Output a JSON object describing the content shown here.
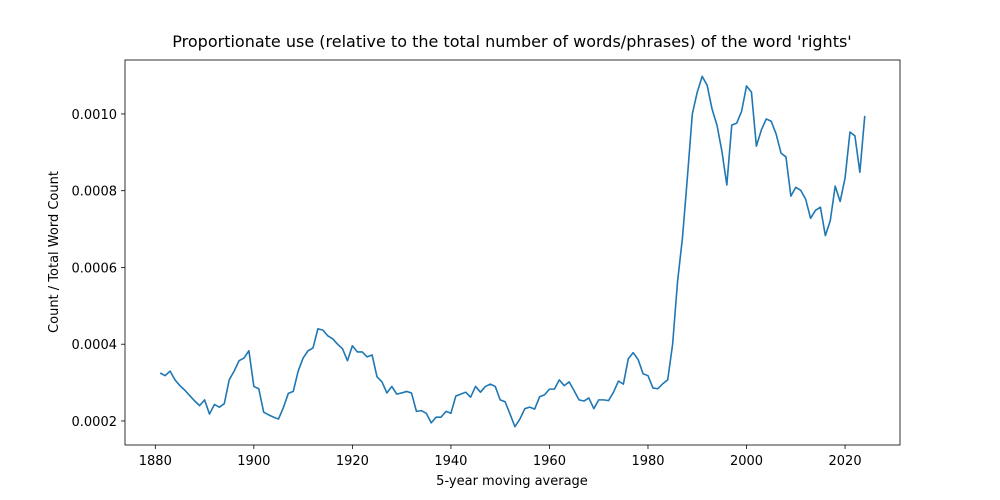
{
  "chart_data": {
    "type": "line",
    "title": "Proportionate use (relative to the total number of words/phrases) of the word 'rights'",
    "x_label": "5-year moving average",
    "y_label": "Count / Total Word Count",
    "x": [
      1881,
      1882,
      1883,
      1884,
      1885,
      1886,
      1887,
      1888,
      1889,
      1890,
      1891,
      1892,
      1893,
      1894,
      1895,
      1896,
      1897,
      1898,
      1899,
      1900,
      1901,
      1902,
      1903,
      1904,
      1905,
      1906,
      1907,
      1908,
      1909,
      1910,
      1911,
      1912,
      1913,
      1914,
      1915,
      1916,
      1917,
      1918,
      1919,
      1920,
      1921,
      1922,
      1923,
      1924,
      1925,
      1926,
      1927,
      1928,
      1929,
      1930,
      1931,
      1932,
      1933,
      1934,
      1935,
      1936,
      1937,
      1938,
      1939,
      1940,
      1941,
      1942,
      1943,
      1944,
      1945,
      1946,
      1947,
      1948,
      1949,
      1950,
      1951,
      1952,
      1953,
      1954,
      1955,
      1956,
      1957,
      1958,
      1959,
      1960,
      1961,
      1962,
      1963,
      1964,
      1965,
      1966,
      1967,
      1968,
      1969,
      1970,
      1971,
      1972,
      1973,
      1974,
      1975,
      1976,
      1977,
      1978,
      1979,
      1980,
      1981,
      1982,
      1983,
      1984,
      1985,
      1986,
      1987,
      1988,
      1989,
      1990,
      1991,
      1992,
      1993,
      1994,
      1995,
      1996,
      1997,
      1998,
      1999,
      2000,
      2001,
      2002,
      2003,
      2004,
      2005,
      2006,
      2007,
      2008,
      2009,
      2010,
      2011,
      2012,
      2013,
      2014,
      2015,
      2016,
      2017,
      2018,
      2019,
      2020,
      2021,
      2022,
      2023,
      2024
    ],
    "series": [
      {
        "name": "rights",
        "color": "#1f77b4",
        "values": [
          0.000325,
          0.000318,
          0.00033,
          0.000307,
          0.000292,
          0.00028,
          0.000266,
          0.000252,
          0.00024,
          0.000255,
          0.000218,
          0.000243,
          0.000236,
          0.000245,
          0.000307,
          0.00033,
          0.000357,
          0.000364,
          0.000383,
          0.00029,
          0.000284,
          0.000223,
          0.000216,
          0.00021,
          0.000205,
          0.000235,
          0.000272,
          0.000277,
          0.00033,
          0.000364,
          0.000383,
          0.00039,
          0.00044,
          0.000437,
          0.000422,
          0.000414,
          0.0004,
          0.000388,
          0.000357,
          0.000396,
          0.00038,
          0.00038,
          0.000367,
          0.000372,
          0.000315,
          0.000302,
          0.000273,
          0.00029,
          0.00027,
          0.000273,
          0.000277,
          0.000273,
          0.000225,
          0.000227,
          0.00022,
          0.000195,
          0.00021,
          0.00021,
          0.000225,
          0.00022,
          0.000265,
          0.00027,
          0.000275,
          0.000262,
          0.00029,
          0.000275,
          0.00029,
          0.000296,
          0.00029,
          0.000255,
          0.00025,
          0.000218,
          0.000185,
          0.000205,
          0.000232,
          0.000236,
          0.000231,
          0.000263,
          0.000268,
          0.000283,
          0.000283,
          0.000307,
          0.000292,
          0.000302,
          0.000279,
          0.000255,
          0.000252,
          0.00026,
          0.000232,
          0.000255,
          0.000255,
          0.000253,
          0.000275,
          0.000304,
          0.000296,
          0.000362,
          0.000378,
          0.00036,
          0.000323,
          0.000318,
          0.000286,
          0.000284,
          0.000297,
          0.000307,
          0.0004,
          0.000563,
          0.000678,
          0.000835,
          0.001,
          0.001057,
          0.001098,
          0.001075,
          0.001013,
          0.000971,
          0.000903,
          0.000815,
          0.000971,
          0.000976,
          0.001007,
          0.001073,
          0.001057,
          0.000916,
          0.000958,
          0.000987,
          0.000981,
          0.000948,
          0.000898,
          0.000888,
          0.000786,
          0.000809,
          0.000801,
          0.000778,
          0.000728,
          0.000749,
          0.000757,
          0.000683,
          0.000722,
          0.000812,
          0.000772,
          0.000833,
          0.000953,
          0.000943,
          0.000848,
          0.000995
        ]
      }
    ],
    "xlim": [
      1873.85,
      2031.15
    ],
    "xticks": [
      1880,
      1900,
      1920,
      1940,
      1960,
      1980,
      2000,
      2020
    ],
    "ylim": [
      0.0001374,
      0.0011406
    ],
    "yticks": [
      0.0002,
      0.0004,
      0.0006,
      0.0008,
      {
        "value": 0.001,
        "label": "0.0010"
      }
    ],
    "grid": false
  }
}
